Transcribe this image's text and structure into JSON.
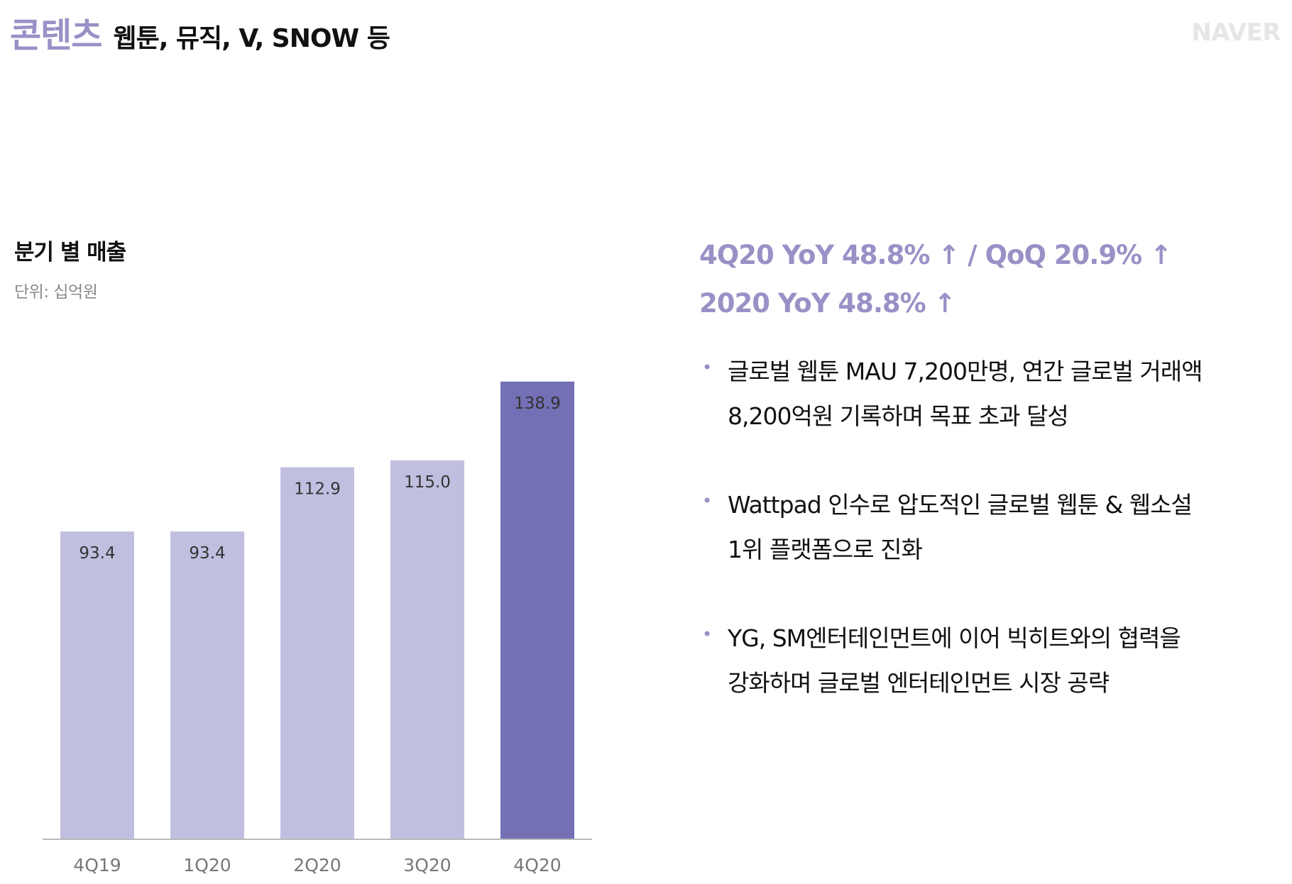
{
  "header": {
    "title": "콘텐츠",
    "subtitle": "웹툰, 뮤직, V, SNOW 등",
    "logo": "NAVER"
  },
  "chart_section": {
    "title": "분기 별 매출",
    "unit": "단위: 십억원"
  },
  "highlights": [
    "4Q20 YoY 48.8% ↑ / QoQ 20.9% ↑",
    "2020 YoY 48.8% ↑"
  ],
  "bullets": [
    {
      "lines": [
        "글로벌 웹툰 MAU 7,200만명, 연간 글로벌 거래액",
        "8,200억원 기록하며 목표 초과 달성"
      ]
    },
    {
      "lines": [
        "Wattpad 인수로 압도적인 글로벌 웹툰 & 웹소설",
        "1위 플랫폼으로 진화"
      ]
    },
    {
      "lines": [
        "YG, SM엔터테인먼트에 이어 빅히트와의 협력을",
        "강화하며 글로벌 엔터테인먼트 시장 공략"
      ]
    }
  ],
  "bullet_marker": "•",
  "colors": {
    "accent": "#9b90c6",
    "bar_light": "#c1bfe0",
    "bar_highlight": "#7470b5",
    "axis": "#bbbbbb"
  },
  "chart_data": {
    "type": "bar",
    "title": "분기 별 매출",
    "ylabel": "단위: 십억원",
    "xlabel": "",
    "categories": [
      "4Q19",
      "1Q20",
      "2Q20",
      "3Q20",
      "4Q20"
    ],
    "values": [
      93.4,
      93.4,
      112.9,
      115.0,
      138.9
    ],
    "value_labels": [
      "93.4",
      "93.4",
      "112.9",
      "115.0",
      "138.9"
    ],
    "highlight_index": 4,
    "ylim": [
      0,
      150
    ],
    "grid": false,
    "legend": "none"
  }
}
